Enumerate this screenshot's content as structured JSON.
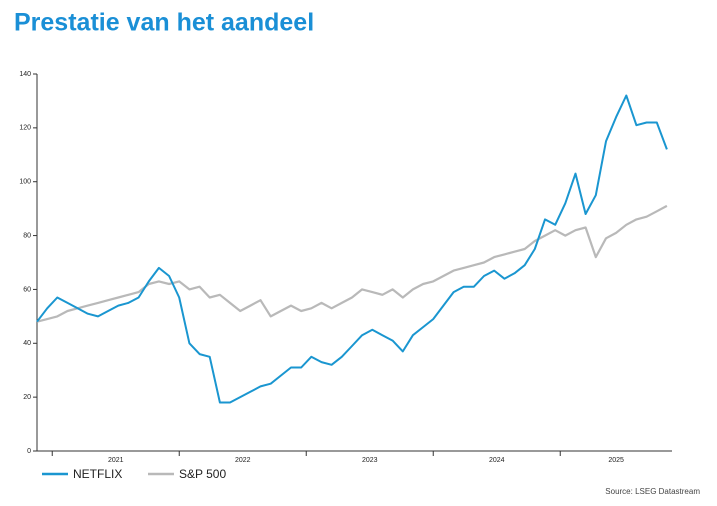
{
  "chart_data": {
    "type": "line",
    "title": "Prestatie van het aandeel",
    "source": "Source: LSEG Datastream",
    "x": [
      2020.88,
      2020.96,
      2021.04,
      2021.12,
      2021.2,
      2021.28,
      2021.36,
      2021.44,
      2021.52,
      2021.6,
      2021.68,
      2021.76,
      2021.84,
      2021.92,
      2022.0,
      2022.08,
      2022.16,
      2022.24,
      2022.32,
      2022.4,
      2022.48,
      2022.56,
      2022.64,
      2022.72,
      2022.8,
      2022.88,
      2022.96,
      2023.04,
      2023.12,
      2023.2,
      2023.28,
      2023.36,
      2023.44,
      2023.52,
      2023.6,
      2023.68,
      2023.76,
      2023.84,
      2023.92,
      2024.0,
      2024.08,
      2024.16,
      2024.24,
      2024.32,
      2024.4,
      2024.48,
      2024.56,
      2024.64,
      2024.72,
      2024.8,
      2024.88,
      2024.96,
      2025.04,
      2025.12,
      2025.2,
      2025.28,
      2025.36,
      2025.44,
      2025.52,
      2025.6,
      2025.68,
      2025.76,
      2025.84
    ],
    "series": [
      {
        "name": "NETFLIX",
        "color": "#1a96d0",
        "values": [
          48,
          53,
          57,
          55,
          53,
          51,
          50,
          52,
          54,
          55,
          57,
          63,
          68,
          65,
          57,
          40,
          36,
          35,
          18,
          18,
          20,
          22,
          24,
          25,
          28,
          31,
          31,
          35,
          33,
          32,
          35,
          39,
          43,
          45,
          43,
          41,
          37,
          43,
          46,
          49,
          54,
          59,
          61,
          61,
          65,
          67,
          64,
          66,
          69,
          75,
          86,
          84,
          92,
          103,
          88,
          95,
          115,
          124,
          132,
          121,
          122,
          122,
          112
        ]
      },
      {
        "name": "S&P 500",
        "color": "#b9b9b9",
        "values": [
          48,
          49,
          50,
          52,
          53,
          54,
          55,
          56,
          57,
          58,
          59,
          62,
          63,
          62,
          63,
          60,
          61,
          57,
          58,
          55,
          52,
          54,
          56,
          50,
          52,
          54,
          52,
          53,
          55,
          53,
          55,
          57,
          60,
          59,
          58,
          60,
          57,
          60,
          62,
          63,
          65,
          67,
          68,
          69,
          70,
          72,
          73,
          74,
          75,
          78,
          80,
          82,
          80,
          82,
          83,
          72,
          79,
          81,
          84,
          86,
          87,
          89,
          91
        ]
      }
    ],
    "xlim": [
      2020.88,
      2025.88
    ],
    "xticks": [
      {
        "value": 2021.5,
        "label": "2021"
      },
      {
        "value": 2022.5,
        "label": "2022"
      },
      {
        "value": 2023.5,
        "label": "2023"
      },
      {
        "value": 2024.5,
        "label": "2024"
      },
      {
        "value": 2025.44,
        "label": "2025"
      }
    ],
    "xtick_marks": [
      2021,
      2022,
      2023,
      2024,
      2025
    ],
    "ylim": [
      0,
      140
    ],
    "yticks": [
      0,
      20,
      40,
      60,
      80,
      100,
      120,
      140
    ],
    "grid": false
  }
}
